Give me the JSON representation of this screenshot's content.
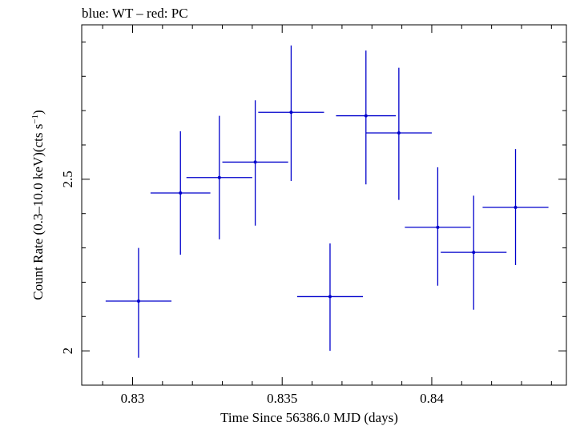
{
  "chart_data": {
    "type": "scatter",
    "title": "blue: WT – red: PC",
    "xlabel": "Time Since 56386.0 MJD (days)",
    "ylabel_main": "Count Rate (0.3–10.0 keV)(cts s",
    "ylabel_sup": "−1",
    "ylabel_close": ")",
    "xlim": [
      0.8283,
      0.8445
    ],
    "ylim": [
      1.9,
      2.95
    ],
    "x_ticks": [
      0.83,
      0.835,
      0.84
    ],
    "x_tick_labels": [
      "0.83",
      "0.835",
      "0.84"
    ],
    "y_ticks": [
      2,
      2.5
    ],
    "y_tick_labels": [
      "2",
      "2.5"
    ],
    "grid": false,
    "series": [
      {
        "color": "#0000cc",
        "points": [
          {
            "x": 0.8302,
            "xerr": 0.0011,
            "y": 2.145,
            "yerr_low": 0.165,
            "yerr_high": 0.155
          },
          {
            "x": 0.8316,
            "xerr": 0.001,
            "y": 2.46,
            "yerr_low": 0.18,
            "yerr_high": 0.18
          },
          {
            "x": 0.8329,
            "xerr": 0.0011,
            "y": 2.505,
            "yerr_low": 0.18,
            "yerr_high": 0.18
          },
          {
            "x": 0.8341,
            "xerr": 0.0011,
            "y": 2.55,
            "yerr_low": 0.185,
            "yerr_high": 0.18
          },
          {
            "x": 0.8353,
            "xerr": 0.0011,
            "y": 2.695,
            "yerr_low": 0.2,
            "yerr_high": 0.195
          },
          {
            "x": 0.8366,
            "xerr": 0.0011,
            "y": 2.158,
            "yerr_low": 0.158,
            "yerr_high": 0.155
          },
          {
            "x": 0.8378,
            "xerr": 0.001,
            "y": 2.685,
            "yerr_low": 0.2,
            "yerr_high": 0.19
          },
          {
            "x": 0.8389,
            "xerr": 0.0011,
            "y": 2.635,
            "yerr_low": 0.195,
            "yerr_high": 0.19
          },
          {
            "x": 0.8402,
            "xerr": 0.0011,
            "y": 2.36,
            "yerr_low": 0.17,
            "yerr_high": 0.175
          },
          {
            "x": 0.8414,
            "xerr": 0.0011,
            "y": 2.287,
            "yerr_low": 0.167,
            "yerr_high": 0.165
          },
          {
            "x": 0.8428,
            "xerr": 0.0011,
            "y": 2.418,
            "yerr_low": 0.168,
            "yerr_high": 0.17
          }
        ]
      }
    ]
  }
}
